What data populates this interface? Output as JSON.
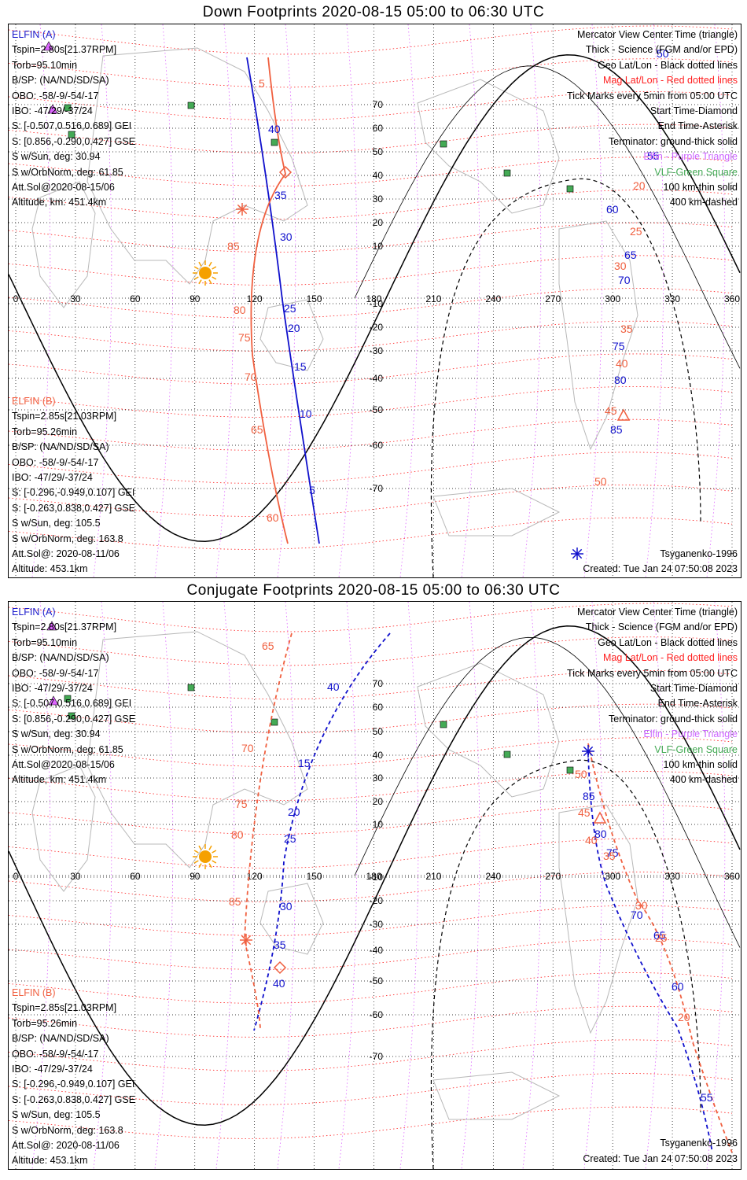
{
  "top_title": "Down Footprints 2020-08-15 05:00 to 06:30 UTC",
  "bottom_title": "Conjugate Footprints 2020-08-15 05:00 to 06:30 UTC",
  "elfin_a": {
    "header": "ELFIN (A)",
    "lines": [
      "Tspin=2.80s[21.37RPM]",
      "Torb=95.10min",
      "B/SP: (NA/ND/SD/SA)",
      "OBO: -58/-9/-54/-17",
      "IBO: -47/29/-37/24",
      "S: [-0.507,0.516,0.689] GEI",
      "S: [0.856,-0.290,0.427] GSE",
      "S w/Sun, deg: 30.94",
      "S w/OrbNorm, deg: 61.85",
      "Att.Sol@2020-08-15/06",
      "Altitude, km: 451.4km"
    ]
  },
  "elfin_b": {
    "header": "ELFIN (B)",
    "lines": [
      "Tspin=2.85s[21.03RPM]",
      "Torb=95.26min",
      "B/SP: (NA/ND/SD/SA)",
      "OBO: -58/-9/-54/-17",
      "IBO: -47/29/-37/24",
      "S: [-0.296,-0.949,0.107] GEI",
      "S: [-0.263,0.838,0.427] GSE",
      "S w/Sun, deg: 105.5",
      "S w/OrbNorm, deg: 163.8",
      "Att.Sol@: 2020-08-11/06",
      "Altitude: 453.1km"
    ]
  },
  "legend": {
    "l1": "Mercator View Center Time (triangle)",
    "l2": "Thick - Science (FGM and/or EPD)",
    "l3": "Geo Lat/Lon - Black dotted lines",
    "l4": "Mag Lat/Lon - Red dotted lines",
    "l5": "Tick Marks every 5min from 05:00 UTC",
    "l6": "Start Time-Diamond",
    "l7": "End Time-Asterisk",
    "l8": "Terminator: ground-thick solid",
    "l9": "Elfin - Purple Triangle",
    "l10": "VLF-Green Square",
    "l11": "100 km-thin solid",
    "l12": "400 km-dashed"
  },
  "footer": {
    "model": "Tsyganenko-1996",
    "created": "Created: Tue Jan 24 07:50:08 2023"
  },
  "map_axes": {
    "lon_ticks": [
      "0",
      "30",
      "60",
      "90",
      "120",
      "150",
      "180",
      "210",
      "240",
      "270",
      "300",
      "330",
      "360"
    ],
    "lat_ticks": [
      "70",
      "60",
      "50",
      "40",
      "30",
      "20",
      "10",
      "-10",
      "-20",
      "-30",
      "-40",
      "-50",
      "-60",
      "-70"
    ]
  },
  "colors": {
    "elfin_a": "#1010cc",
    "elfin_b": "#f06040",
    "geo_grid": "#000000",
    "mag_grid": "#ff2020",
    "meridian": "#dd66ff",
    "vlf": "#44aa55",
    "sun": "#f5a000"
  },
  "top_track_labels": {
    "a": [
      "55",
      "60",
      "65",
      "70",
      "75",
      "80",
      "85",
      "40",
      "35",
      "30",
      "25",
      "20",
      "15",
      "10",
      "5",
      "50"
    ],
    "b": [
      "5",
      "85",
      "80",
      "75",
      "70",
      "65",
      "60",
      "20",
      "25",
      "30",
      "35",
      "40",
      "45",
      "50"
    ]
  },
  "bottom_track_labels": {
    "a": [
      "40",
      "15",
      "20",
      "25",
      "30",
      "35",
      "40",
      "85",
      "80",
      "75",
      "70",
      "65",
      "60",
      "55"
    ],
    "b": [
      "65",
      "70",
      "75",
      "80",
      "85",
      "50",
      "45",
      "40",
      "35",
      "30",
      "25",
      "20"
    ]
  }
}
